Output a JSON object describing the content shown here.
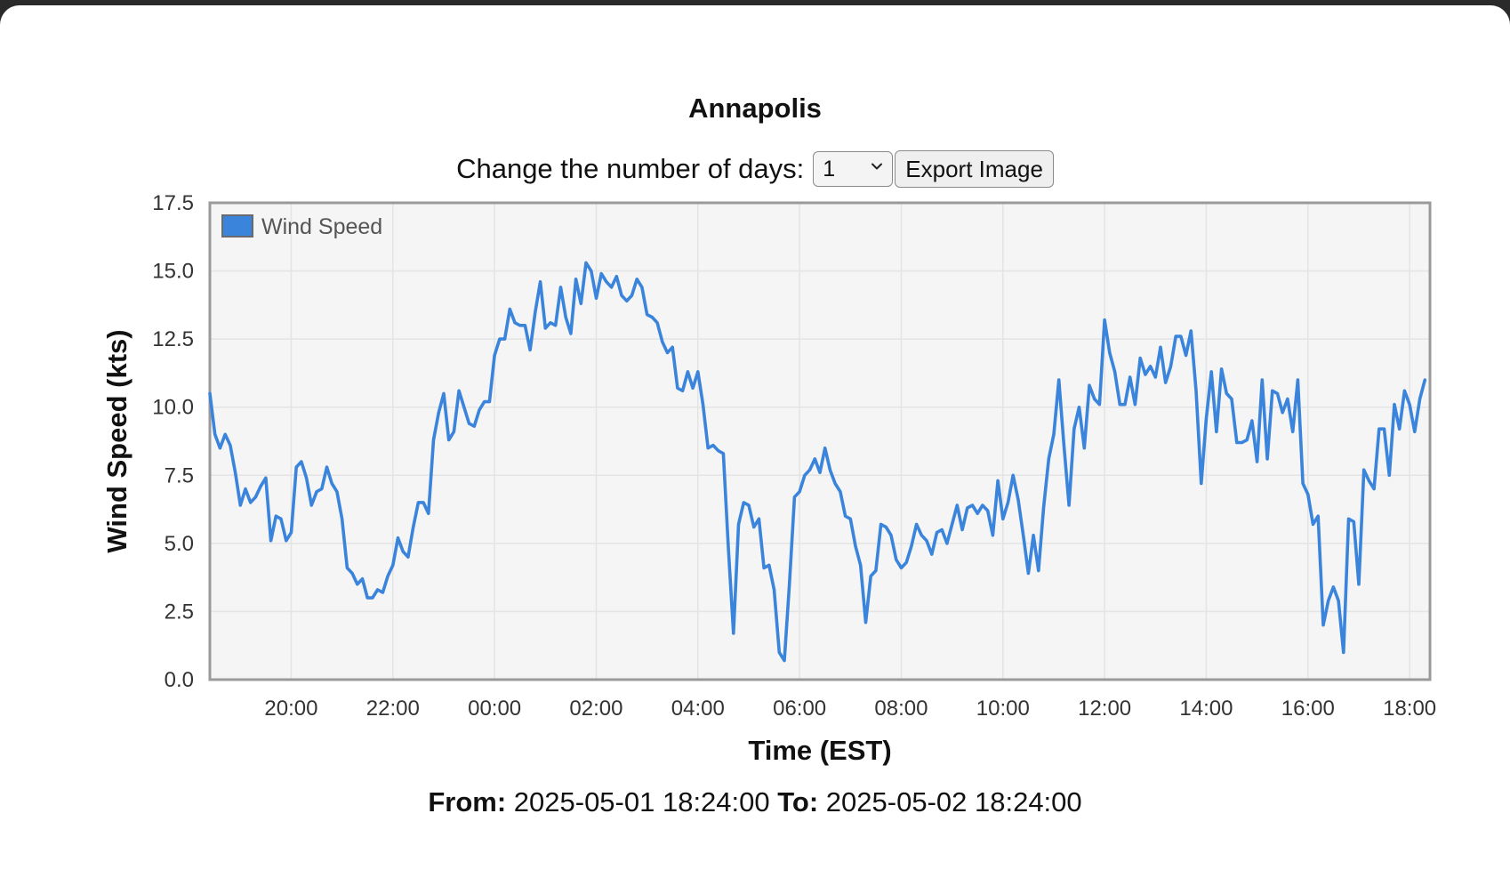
{
  "page": {
    "title": "Annapolis",
    "days_label": "Change the number of days:",
    "days_value": "1",
    "export_label": "Export Image",
    "from_label": "From:",
    "from_value": "2025-05-01 18:24:00",
    "to_label": "To:",
    "to_value": "2025-05-02 18:24:00"
  },
  "colors": {
    "series": "#3a84db",
    "plot_bg": "#f5f5f5",
    "frame": "#9a9a9a"
  },
  "chart_data": {
    "type": "line",
    "title": "",
    "xlabel": "Time (EST)",
    "ylabel": "Wind Speed (kts)",
    "ylim": [
      0,
      17.5
    ],
    "yticks": [
      "0.0",
      "2.5",
      "5.0",
      "7.5",
      "10.0",
      "12.5",
      "15.0",
      "17.5"
    ],
    "xlim": [
      "2025-05-01 18:24",
      "2025-05-02 18:24"
    ],
    "xticks": [
      "20:00",
      "22:00",
      "00:00",
      "02:00",
      "04:00",
      "06:00",
      "08:00",
      "10:00",
      "12:00",
      "14:00",
      "16:00",
      "18:00"
    ],
    "grid": true,
    "legend": "top-left",
    "series": [
      {
        "name": "Wind Speed",
        "color": "#3a84db",
        "points": [
          [
            "18:24",
            10.5
          ],
          [
            "18:30",
            9.0
          ],
          [
            "18:36",
            8.5
          ],
          [
            "18:42",
            9.0
          ],
          [
            "18:48",
            8.6
          ],
          [
            "18:54",
            7.6
          ],
          [
            "19:00",
            6.4
          ],
          [
            "19:06",
            7.0
          ],
          [
            "19:12",
            6.5
          ],
          [
            "19:18",
            6.7
          ],
          [
            "19:24",
            7.1
          ],
          [
            "19:30",
            7.4
          ],
          [
            "19:36",
            5.1
          ],
          [
            "19:42",
            6.0
          ],
          [
            "19:48",
            5.9
          ],
          [
            "19:54",
            5.1
          ],
          [
            "20:00",
            5.4
          ],
          [
            "20:06",
            7.8
          ],
          [
            "20:12",
            8.0
          ],
          [
            "20:18",
            7.4
          ],
          [
            "20:24",
            6.4
          ],
          [
            "20:30",
            6.9
          ],
          [
            "20:36",
            7.0
          ],
          [
            "20:42",
            7.8
          ],
          [
            "20:48",
            7.2
          ],
          [
            "20:54",
            6.9
          ],
          [
            "21:00",
            5.9
          ],
          [
            "21:06",
            4.1
          ],
          [
            "21:12",
            3.9
          ],
          [
            "21:18",
            3.5
          ],
          [
            "21:24",
            3.7
          ],
          [
            "21:30",
            3.0
          ],
          [
            "21:36",
            3.0
          ],
          [
            "21:42",
            3.3
          ],
          [
            "21:48",
            3.2
          ],
          [
            "21:54",
            3.8
          ],
          [
            "22:00",
            4.2
          ],
          [
            "22:06",
            5.2
          ],
          [
            "22:12",
            4.7
          ],
          [
            "22:18",
            4.5
          ],
          [
            "22:24",
            5.6
          ],
          [
            "22:30",
            6.5
          ],
          [
            "22:36",
            6.5
          ],
          [
            "22:42",
            6.1
          ],
          [
            "22:48",
            8.8
          ],
          [
            "22:54",
            9.8
          ],
          [
            "23:00",
            10.5
          ],
          [
            "23:06",
            8.8
          ],
          [
            "23:12",
            9.1
          ],
          [
            "23:18",
            10.6
          ],
          [
            "23:24",
            10.0
          ],
          [
            "23:30",
            9.4
          ],
          [
            "23:36",
            9.3
          ],
          [
            "23:42",
            9.9
          ],
          [
            "23:48",
            10.2
          ],
          [
            "23:54",
            10.2
          ],
          [
            "00:00",
            11.9
          ],
          [
            "00:06",
            12.5
          ],
          [
            "00:12",
            12.5
          ],
          [
            "00:18",
            13.6
          ],
          [
            "00:24",
            13.1
          ],
          [
            "00:30",
            13.0
          ],
          [
            "00:36",
            13.0
          ],
          [
            "00:42",
            12.1
          ],
          [
            "00:48",
            13.5
          ],
          [
            "00:54",
            14.6
          ],
          [
            "01:00",
            12.9
          ],
          [
            "01:06",
            13.1
          ],
          [
            "01:12",
            13.0
          ],
          [
            "01:18",
            14.4
          ],
          [
            "01:24",
            13.3
          ],
          [
            "01:30",
            12.7
          ],
          [
            "01:36",
            14.7
          ],
          [
            "01:42",
            13.8
          ],
          [
            "01:48",
            15.3
          ],
          [
            "01:54",
            15.0
          ],
          [
            "02:00",
            14.0
          ],
          [
            "02:06",
            14.9
          ],
          [
            "02:12",
            14.6
          ],
          [
            "02:18",
            14.4
          ],
          [
            "02:24",
            14.8
          ],
          [
            "02:30",
            14.1
          ],
          [
            "02:36",
            13.9
          ],
          [
            "02:42",
            14.1
          ],
          [
            "02:48",
            14.7
          ],
          [
            "02:54",
            14.4
          ],
          [
            "03:00",
            13.4
          ],
          [
            "03:06",
            13.3
          ],
          [
            "03:12",
            13.1
          ],
          [
            "03:18",
            12.4
          ],
          [
            "03:24",
            12.0
          ],
          [
            "03:30",
            12.2
          ],
          [
            "03:36",
            10.7
          ],
          [
            "03:42",
            10.6
          ],
          [
            "03:48",
            11.3
          ],
          [
            "03:54",
            10.7
          ],
          [
            "04:00",
            11.3
          ],
          [
            "04:06",
            10.1
          ],
          [
            "04:12",
            8.5
          ],
          [
            "04:18",
            8.6
          ],
          [
            "04:24",
            8.4
          ],
          [
            "04:30",
            8.3
          ],
          [
            "04:36",
            4.8
          ],
          [
            "04:42",
            1.7
          ],
          [
            "04:48",
            5.7
          ],
          [
            "04:54",
            6.5
          ],
          [
            "05:00",
            6.4
          ],
          [
            "05:06",
            5.6
          ],
          [
            "05:12",
            5.9
          ],
          [
            "05:18",
            4.1
          ],
          [
            "05:24",
            4.2
          ],
          [
            "05:30",
            3.3
          ],
          [
            "05:36",
            1.0
          ],
          [
            "05:42",
            0.7
          ],
          [
            "05:48",
            3.5
          ],
          [
            "05:54",
            6.7
          ],
          [
            "06:00",
            6.9
          ],
          [
            "06:06",
            7.5
          ],
          [
            "06:12",
            7.7
          ],
          [
            "06:18",
            8.1
          ],
          [
            "06:24",
            7.6
          ],
          [
            "06:30",
            8.5
          ],
          [
            "06:36",
            7.7
          ],
          [
            "06:42",
            7.2
          ],
          [
            "06:48",
            6.9
          ],
          [
            "06:54",
            6.0
          ],
          [
            "07:00",
            5.9
          ],
          [
            "07:06",
            4.9
          ],
          [
            "07:12",
            4.2
          ],
          [
            "07:18",
            2.1
          ],
          [
            "07:24",
            3.8
          ],
          [
            "07:30",
            4.0
          ],
          [
            "07:36",
            5.7
          ],
          [
            "07:42",
            5.6
          ],
          [
            "07:48",
            5.3
          ],
          [
            "07:54",
            4.4
          ],
          [
            "08:00",
            4.1
          ],
          [
            "08:06",
            4.3
          ],
          [
            "08:12",
            4.9
          ],
          [
            "08:18",
            5.7
          ],
          [
            "08:24",
            5.3
          ],
          [
            "08:30",
            5.1
          ],
          [
            "08:36",
            4.6
          ],
          [
            "08:42",
            5.4
          ],
          [
            "08:48",
            5.5
          ],
          [
            "08:54",
            5.0
          ],
          [
            "09:00",
            5.7
          ],
          [
            "09:06",
            6.4
          ],
          [
            "09:12",
            5.5
          ],
          [
            "09:18",
            6.3
          ],
          [
            "09:24",
            6.4
          ],
          [
            "09:30",
            6.1
          ],
          [
            "09:36",
            6.4
          ],
          [
            "09:42",
            6.2
          ],
          [
            "09:48",
            5.3
          ],
          [
            "09:54",
            7.3
          ],
          [
            "10:00",
            5.9
          ],
          [
            "10:06",
            6.5
          ],
          [
            "10:12",
            7.5
          ],
          [
            "10:18",
            6.6
          ],
          [
            "10:24",
            5.3
          ],
          [
            "10:30",
            3.9
          ],
          [
            "10:36",
            5.3
          ],
          [
            "10:42",
            4.0
          ],
          [
            "10:48",
            6.3
          ],
          [
            "10:54",
            8.1
          ],
          [
            "11:00",
            9.0
          ],
          [
            "11:06",
            11.0
          ],
          [
            "11:12",
            8.6
          ],
          [
            "11:18",
            6.4
          ],
          [
            "11:24",
            9.2
          ],
          [
            "11:30",
            10.0
          ],
          [
            "11:36",
            8.5
          ],
          [
            "11:42",
            10.8
          ],
          [
            "11:48",
            10.3
          ],
          [
            "11:54",
            10.1
          ],
          [
            "12:00",
            13.2
          ],
          [
            "12:06",
            12.0
          ],
          [
            "12:12",
            11.3
          ],
          [
            "12:18",
            10.1
          ],
          [
            "12:24",
            10.1
          ],
          [
            "12:30",
            11.1
          ],
          [
            "12:36",
            10.1
          ],
          [
            "12:42",
            11.8
          ],
          [
            "12:48",
            11.2
          ],
          [
            "12:54",
            11.5
          ],
          [
            "13:00",
            11.1
          ],
          [
            "13:06",
            12.2
          ],
          [
            "13:12",
            10.9
          ],
          [
            "13:18",
            11.5
          ],
          [
            "13:24",
            12.6
          ],
          [
            "13:30",
            12.6
          ],
          [
            "13:36",
            11.9
          ],
          [
            "13:42",
            12.8
          ],
          [
            "13:48",
            10.6
          ],
          [
            "13:54",
            7.2
          ],
          [
            "14:00",
            9.6
          ],
          [
            "14:06",
            11.3
          ],
          [
            "14:12",
            9.1
          ],
          [
            "14:18",
            11.4
          ],
          [
            "14:24",
            10.5
          ],
          [
            "14:30",
            10.3
          ],
          [
            "14:36",
            8.7
          ],
          [
            "14:42",
            8.7
          ],
          [
            "14:48",
            8.8
          ],
          [
            "14:54",
            9.5
          ],
          [
            "15:00",
            8.0
          ],
          [
            "15:06",
            11.0
          ],
          [
            "15:12",
            8.1
          ],
          [
            "15:18",
            10.6
          ],
          [
            "15:24",
            10.5
          ],
          [
            "15:30",
            9.8
          ],
          [
            "15:36",
            10.3
          ],
          [
            "15:42",
            9.1
          ],
          [
            "15:48",
            11.0
          ],
          [
            "15:54",
            7.2
          ],
          [
            "16:00",
            6.8
          ],
          [
            "16:06",
            5.7
          ],
          [
            "16:12",
            6.0
          ],
          [
            "16:18",
            2.0
          ],
          [
            "16:24",
            2.9
          ],
          [
            "16:30",
            3.4
          ],
          [
            "16:36",
            2.9
          ],
          [
            "16:42",
            1.0
          ],
          [
            "16:48",
            5.9
          ],
          [
            "16:54",
            5.8
          ],
          [
            "17:00",
            3.5
          ],
          [
            "17:06",
            7.7
          ],
          [
            "17:12",
            7.3
          ],
          [
            "17:18",
            7.0
          ],
          [
            "17:24",
            9.2
          ],
          [
            "17:30",
            9.2
          ],
          [
            "17:36",
            7.5
          ],
          [
            "17:42",
            10.1
          ],
          [
            "17:48",
            9.2
          ],
          [
            "17:54",
            10.6
          ],
          [
            "18:00",
            10.1
          ],
          [
            "18:06",
            9.1
          ],
          [
            "18:12",
            10.3
          ],
          [
            "18:18",
            11.0
          ]
        ]
      }
    ]
  }
}
